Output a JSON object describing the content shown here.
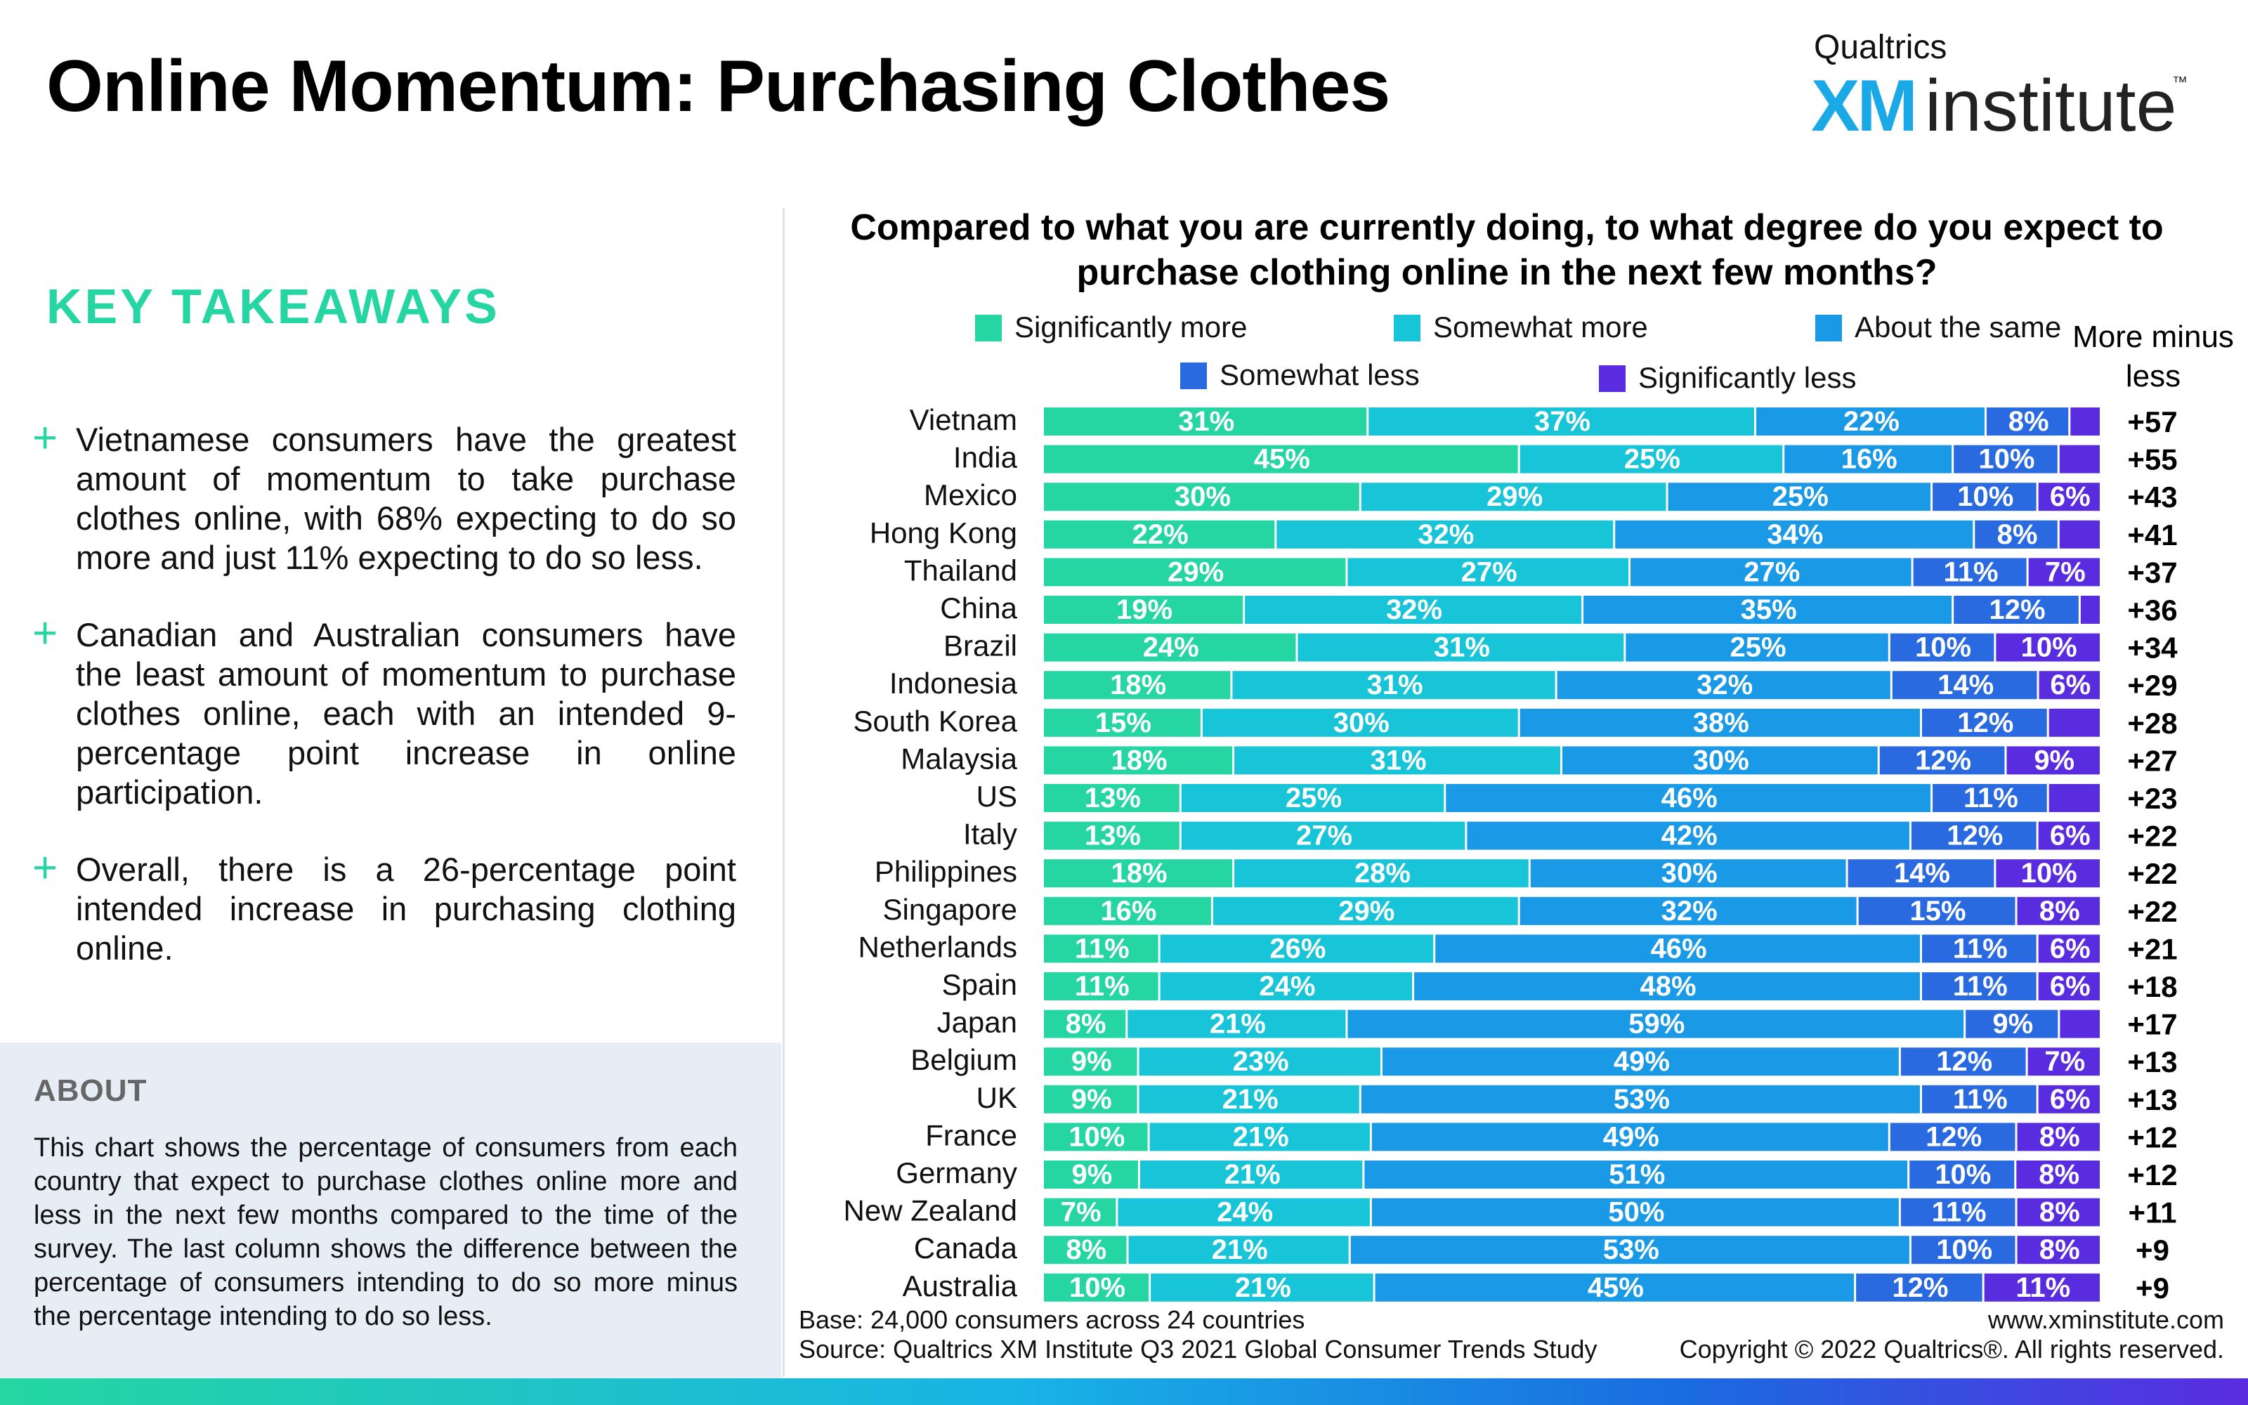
{
  "page": {
    "title": "Online Momentum: Purchasing Clothes"
  },
  "brand": {
    "company": "Qualtrics",
    "name_xm": "XM",
    "name_rest": "institute",
    "trademark": "™"
  },
  "left": {
    "heading": "KEY TAKEAWAYS",
    "takeaways": [
      "Vietnamese consumers have the greatest amount of momentum to take purchase clothes online, with 68% expecting to do so more and just 11% expecting to do so less.",
      "Canadian and Australian consumers have the least amount of momentum to purchase clothes online, each with an intended 9-percentage point increase in online participation.",
      "Overall, there is a 26-percentage point intended increase in purchasing clothing online."
    ],
    "about_heading": "ABOUT",
    "about_text": "This chart shows the percentage of consumers from each country that expect to purchase clothes online more and less in the next few months compared to the time of the survey. The last column shows the difference between the percentage of consumers intending to do so more minus the percentage intending to do so less."
  },
  "chart_data": {
    "type": "bar",
    "orientation": "horizontal-stacked-100",
    "title": "Compared to what you are currently doing, to what degree do you expect to purchase clothing online in the next few months?",
    "net_header": "More minus less",
    "categories": [
      "Vietnam",
      "India",
      "Mexico",
      "Hong Kong",
      "Thailand",
      "China",
      "Brazil",
      "Indonesia",
      "South Korea",
      "Malaysia",
      "US",
      "Italy",
      "Philippines",
      "Singapore",
      "Netherlands",
      "Spain",
      "Japan",
      "Belgium",
      "UK",
      "France",
      "Germany",
      "New Zealand",
      "Canada",
      "Australia"
    ],
    "series": [
      {
        "name": "Significantly more",
        "color": "#25d6a2",
        "values": [
          31,
          45,
          30,
          22,
          29,
          19,
          24,
          18,
          15,
          18,
          13,
          13,
          18,
          16,
          11,
          11,
          8,
          9,
          9,
          10,
          9,
          7,
          8,
          10
        ]
      },
      {
        "name": "Somewhat more",
        "color": "#18c4d8",
        "values": [
          37,
          25,
          29,
          32,
          27,
          32,
          31,
          31,
          30,
          31,
          25,
          27,
          28,
          29,
          26,
          24,
          21,
          23,
          21,
          21,
          21,
          24,
          21,
          21
        ]
      },
      {
        "name": "About the same",
        "color": "#1a9ae6",
        "values": [
          22,
          16,
          25,
          34,
          27,
          35,
          25,
          32,
          38,
          30,
          46,
          42,
          30,
          32,
          46,
          48,
          59,
          49,
          53,
          49,
          51,
          50,
          53,
          45
        ]
      },
      {
        "name": "Somewhat less",
        "color": "#2a6ae0",
        "values": [
          8,
          10,
          10,
          8,
          11,
          12,
          10,
          14,
          12,
          12,
          11,
          12,
          14,
          15,
          11,
          11,
          9,
          12,
          11,
          12,
          10,
          11,
          10,
          12
        ]
      },
      {
        "name": "Significantly less",
        "color": "#5a2ce0",
        "values": [
          3,
          4,
          6,
          4,
          7,
          2,
          10,
          6,
          5,
          9,
          5,
          6,
          10,
          8,
          6,
          6,
          4,
          7,
          6,
          8,
          8,
          8,
          8,
          11
        ]
      }
    ],
    "net_values": [
      "+57",
      "+55",
      "+43",
      "+41",
      "+37",
      "+36",
      "+34",
      "+29",
      "+28",
      "+27",
      "+23",
      "+22",
      "+22",
      "+22",
      "+21",
      "+18",
      "+17",
      "+13",
      "+13",
      "+12",
      "+12",
      "+11",
      "+9",
      "+9"
    ],
    "min_label_value": 6,
    "xlim": [
      0,
      100
    ]
  },
  "footer": {
    "base": "Base: 24,000 consumers across 24 countries",
    "source": "Source: Qualtrics XM Institute Q3 2021 Global Consumer Trends Study",
    "website": "www.xminstitute.com",
    "copyright": "Copyright © 2022 Qualtrics®. All rights reserved."
  }
}
